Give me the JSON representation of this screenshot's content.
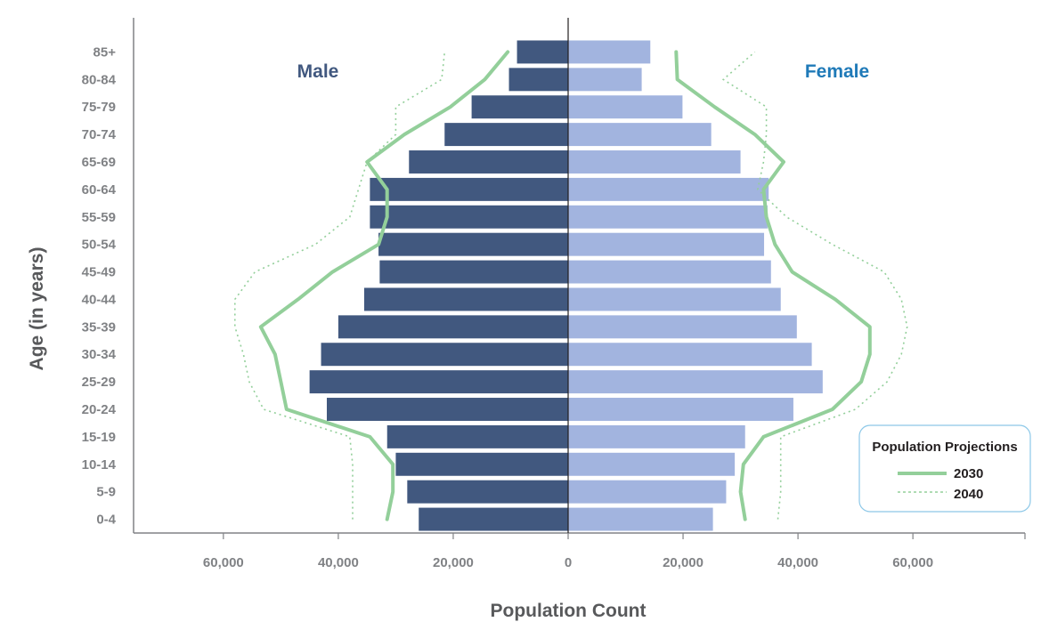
{
  "chart_data": {
    "type": "bar",
    "orientation": "horizontal",
    "subtype": "population-pyramid",
    "title": "",
    "xlabel": "Population Count",
    "ylabel": "Age (in years)",
    "xlim": [
      -80000,
      80000
    ],
    "x_ticks": [
      -60000,
      -40000,
      -20000,
      0,
      20000,
      40000,
      60000
    ],
    "x_tick_labels": [
      "60,000",
      "40,000",
      "20,000",
      "0",
      "20,000",
      "40,000",
      "60,000"
    ],
    "grid": false,
    "categories": [
      "0-4",
      "5-9",
      "10-14",
      "15-19",
      "20-24",
      "25-29",
      "30-34",
      "35-39",
      "40-44",
      "45-49",
      "50-54",
      "55-59",
      "60-64",
      "65-69",
      "70-74",
      "75-79",
      "80-84",
      "85+"
    ],
    "series": [
      {
        "name": "Male",
        "values": [
          26000,
          28000,
          30000,
          31500,
          42000,
          45000,
          43000,
          40000,
          35500,
          32800,
          33000,
          34500,
          34500,
          27700,
          21500,
          16800,
          10300,
          8900
        ],
        "color": "#41587f"
      },
      {
        "name": "Female",
        "values": [
          25200,
          27500,
          29000,
          30800,
          39200,
          44300,
          42400,
          39800,
          37000,
          35300,
          34100,
          34700,
          34900,
          30000,
          24900,
          19900,
          12800,
          14300
        ],
        "color": "#a2b4df"
      }
    ],
    "projections": [
      {
        "name": "2030",
        "style": "solid",
        "color": "#93cf9a",
        "male": [
          31500,
          30500,
          30500,
          34500,
          49000,
          50000,
          51000,
          53500,
          47000,
          41000,
          33000,
          31500,
          31500,
          35000,
          28500,
          20500,
          14500,
          10500
        ],
        "female": [
          30800,
          30000,
          30500,
          34000,
          46000,
          51000,
          52500,
          52500,
          46500,
          39000,
          36000,
          34500,
          34000,
          37500,
          32500,
          25500,
          19000,
          18800
        ]
      },
      {
        "name": "2040",
        "style": "dotted",
        "color": "#93cf9a",
        "male": [
          37500,
          37500,
          37500,
          38000,
          53000,
          55500,
          56500,
          58000,
          58000,
          54500,
          44000,
          38000,
          36500,
          35000,
          30000,
          30000,
          22000,
          21500
        ],
        "female": [
          36500,
          37000,
          37000,
          37000,
          50000,
          55500,
          58000,
          59000,
          58000,
          55000,
          46000,
          38000,
          33000,
          34000,
          34500,
          34500,
          27000,
          32500
        ]
      }
    ],
    "side_labels": {
      "left": "Male",
      "right": "Female"
    },
    "legend": {
      "title": "Population Projections",
      "placement": "bottom-right",
      "entries": [
        "2030",
        "2040"
      ]
    }
  }
}
